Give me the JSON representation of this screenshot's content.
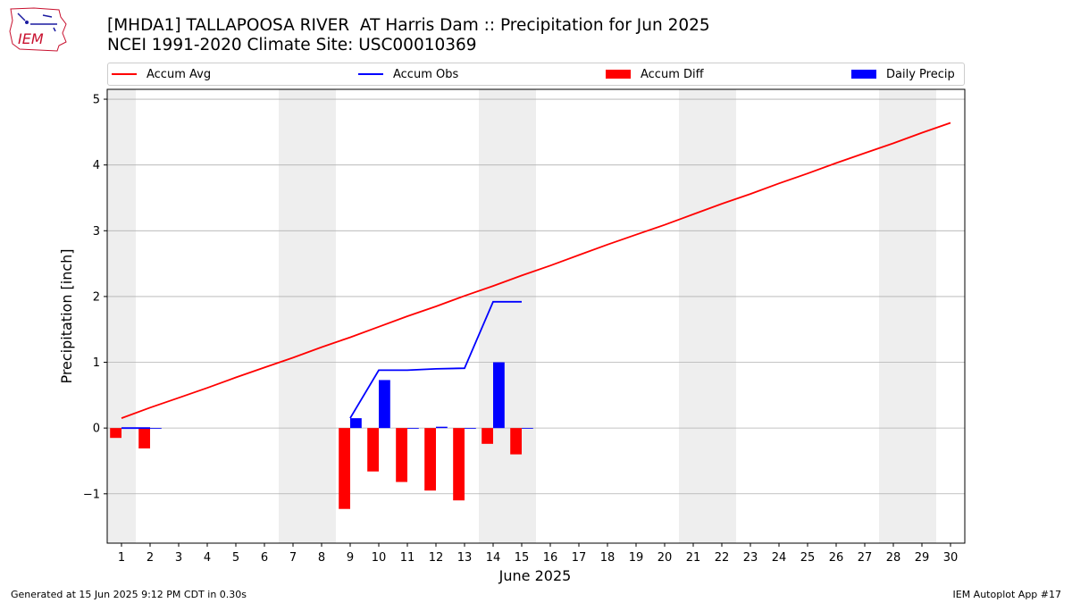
{
  "header": {
    "title": "[MHDA1] TALLAPOOSA RIVER  AT Harris Dam :: Precipitation for Jun 2025",
    "subtitle": "NCEI 1991-2020 Climate Site: USC00010369",
    "logo_text": "IEM"
  },
  "legend": {
    "accum_avg": "Accum Avg",
    "accum_obs": "Accum Obs",
    "accum_diff": "Accum Diff",
    "daily_precip": "Daily Precip"
  },
  "footer": {
    "generated": "Generated at 15 Jun 2025 9:12 PM CDT in 0.30s",
    "app": "IEM Autoplot App #17"
  },
  "colors": {
    "avg": "#ff0000",
    "obs": "#0000ff",
    "diff": "#ff0000",
    "daily": "#0000ff",
    "weekend": "#eeeeee",
    "grid": "#b0b0b0"
  },
  "chart_data": {
    "type": "bar",
    "xlabel": "June 2025",
    "ylabel": "Precipitation [inch]",
    "xlim": [
      0.5,
      30.5
    ],
    "ylim": [
      -1.75,
      5.15
    ],
    "yticks": [
      -1,
      0,
      1,
      2,
      3,
      4,
      5
    ],
    "ytick_labels": [
      "−1",
      "0",
      "1",
      "2",
      "3",
      "4",
      "5"
    ],
    "x": [
      1,
      2,
      3,
      4,
      5,
      6,
      7,
      8,
      9,
      10,
      11,
      12,
      13,
      14,
      15,
      16,
      17,
      18,
      19,
      20,
      21,
      22,
      23,
      24,
      25,
      26,
      27,
      28,
      29,
      30
    ],
    "xtick_labels": [
      "1",
      "2",
      "3",
      "4",
      "5",
      "6",
      "7",
      "8",
      "9",
      "10",
      "11",
      "12",
      "13",
      "14",
      "15",
      "16",
      "17",
      "18",
      "19",
      "20",
      "21",
      "22",
      "23",
      "24",
      "25",
      "26",
      "27",
      "28",
      "29",
      "30"
    ],
    "weekend_days": [
      1,
      7,
      8,
      14,
      15,
      21,
      22,
      28,
      29
    ],
    "grid": true,
    "legend_position": "top",
    "series": [
      {
        "name": "Accum Avg",
        "kind": "line",
        "x": [
          1,
          2,
          3,
          4,
          5,
          6,
          7,
          8,
          9,
          10,
          11,
          12,
          13,
          14,
          15,
          16,
          17,
          18,
          19,
          20,
          21,
          22,
          23,
          24,
          25,
          26,
          27,
          28,
          29,
          30
        ],
        "values": [
          0.15,
          0.31,
          0.46,
          0.61,
          0.77,
          0.92,
          1.07,
          1.23,
          1.38,
          1.54,
          1.7,
          1.85,
          2.01,
          2.16,
          2.32,
          2.47,
          2.63,
          2.79,
          2.94,
          3.09,
          3.25,
          3.41,
          3.56,
          3.72,
          3.87,
          4.03,
          4.18,
          4.33,
          4.49,
          4.64
        ]
      },
      {
        "name": "Accum Obs",
        "kind": "line",
        "x": [
          1,
          2,
          9,
          10,
          11,
          12,
          13,
          14,
          15
        ],
        "values": [
          0.0,
          0.0,
          0.15,
          0.88,
          0.88,
          0.9,
          0.91,
          1.92,
          1.92
        ]
      },
      {
        "name": "Accum Diff",
        "kind": "bar",
        "x": [
          1,
          2,
          9,
          10,
          11,
          12,
          13,
          14,
          15
        ],
        "values": [
          -0.15,
          -0.31,
          -1.23,
          -0.66,
          -0.82,
          -0.95,
          -1.1,
          -0.24,
          -0.4
        ]
      },
      {
        "name": "Daily Precip",
        "kind": "bar",
        "x": [
          1,
          2,
          9,
          10,
          11,
          12,
          13,
          14,
          15
        ],
        "values": [
          0.0,
          0.0,
          0.15,
          0.73,
          0.0,
          0.02,
          0.0,
          1.0,
          0.0
        ]
      }
    ]
  }
}
